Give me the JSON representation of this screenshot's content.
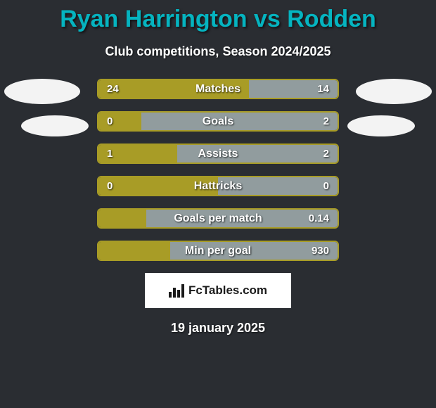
{
  "title_color": "#05b4c0",
  "title": "Ryan Harrington vs Rodden",
  "subtitle": "Club competitions, Season 2024/2025",
  "date": "19 january 2025",
  "attribution": "FcTables.com",
  "colors": {
    "left": "#a89c26",
    "right": "#919c9e"
  },
  "bars": [
    {
      "label": "Matches",
      "left_val": "24",
      "right_val": "14",
      "left_pct": 63,
      "right_pct": 37
    },
    {
      "label": "Goals",
      "left_val": "0",
      "right_val": "2",
      "left_pct": 18,
      "right_pct": 82
    },
    {
      "label": "Assists",
      "left_val": "1",
      "right_val": "2",
      "left_pct": 33,
      "right_pct": 67
    },
    {
      "label": "Hattricks",
      "left_val": "0",
      "right_val": "0",
      "left_pct": 50,
      "right_pct": 50
    },
    {
      "label": "Goals per match",
      "left_val": "",
      "right_val": "0.14",
      "left_pct": 20,
      "right_pct": 80
    },
    {
      "label": "Min per goal",
      "left_val": "",
      "right_val": "930",
      "left_pct": 30,
      "right_pct": 70
    }
  ]
}
